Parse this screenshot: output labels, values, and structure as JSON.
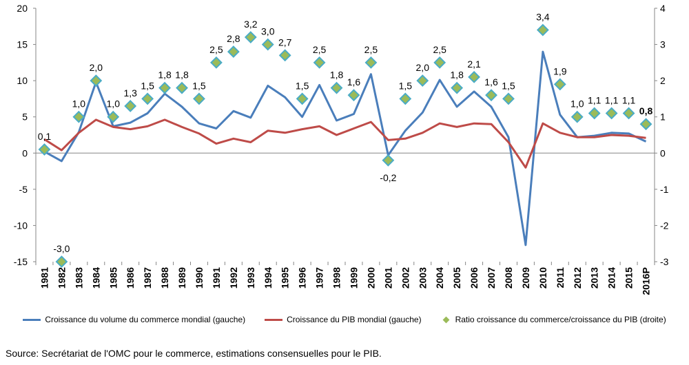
{
  "chart_data": {
    "type": "line",
    "categories": [
      "1981",
      "1982",
      "1983",
      "1984",
      "1985",
      "1986",
      "1987",
      "1988",
      "1989",
      "1990",
      "1991",
      "1992",
      "1993",
      "1994",
      "1995",
      "1996",
      "1997",
      "1998",
      "1999",
      "2000",
      "2001",
      "2002",
      "2003",
      "2004",
      "2005",
      "2006",
      "2007",
      "2008",
      "2009",
      "2010",
      "2011",
      "2012",
      "2013",
      "2014",
      "2015",
      "2016P"
    ],
    "series": [
      {
        "name": "Croissance du volume du commerce mondial (gauche)",
        "axis": "left",
        "color": "#4a7ebb",
        "values": [
          0.2,
          -1.1,
          2.9,
          9.8,
          3.7,
          4.2,
          5.5,
          8.2,
          6.4,
          4.1,
          3.4,
          5.8,
          4.9,
          9.3,
          7.7,
          5.0,
          9.4,
          4.5,
          5.4,
          10.9,
          -0.3,
          3.1,
          5.6,
          10.1,
          6.4,
          8.5,
          6.4,
          2.2,
          -12.7,
          14.0,
          5.3,
          2.2,
          2.4,
          2.8,
          2.7,
          1.6
        ]
      },
      {
        "name": "Croissance du PIB mondial (gauche)",
        "axis": "left",
        "color": "#be4b48",
        "values": [
          1.9,
          0.4,
          2.8,
          4.6,
          3.6,
          3.3,
          3.7,
          4.6,
          3.6,
          2.7,
          1.3,
          2.0,
          1.5,
          3.1,
          2.8,
          3.3,
          3.7,
          2.5,
          3.4,
          4.3,
          1.8,
          2.0,
          2.8,
          4.1,
          3.6,
          4.1,
          4.0,
          1.5,
          -2.0,
          4.1,
          2.8,
          2.2,
          2.2,
          2.5,
          2.4,
          2.1
        ]
      },
      {
        "name": "Ratio croissance du commerce/croissance du PIB (droite)",
        "axis": "right",
        "color": "#9bbb59",
        "values": [
          0.1,
          -3.0,
          1.0,
          2.0,
          1.0,
          1.3,
          1.5,
          1.8,
          1.8,
          1.5,
          2.5,
          2.8,
          3.2,
          3.0,
          2.7,
          1.5,
          2.5,
          1.8,
          1.6,
          2.5,
          -0.2,
          1.5,
          2.0,
          2.5,
          1.8,
          2.1,
          1.6,
          1.5,
          null,
          3.4,
          1.9,
          1.0,
          1.1,
          1.1,
          1.1,
          0.8
        ],
        "labels": [
          "0,1",
          "-3,0",
          "1,0",
          "2,0",
          "1,0",
          "1,3",
          "1,5",
          "1,8",
          "1,8",
          "1,5",
          "2,5",
          "2,8",
          "3,2",
          "3,0",
          "2,7",
          "1,5",
          "2,5",
          "1,8",
          "1,6",
          "2,5",
          "-0,2",
          "1,5",
          "2,0",
          "2,5",
          "1,8",
          "2,1",
          "1,6",
          "1,5",
          "",
          "3,4",
          "1,9",
          "1,0",
          "1,1",
          "1,1",
          "1,1",
          "0,8"
        ]
      }
    ],
    "y_left": {
      "ylim": [
        -15,
        20
      ],
      "ticks": [
        "-15",
        "-10",
        "-5",
        "0",
        "5",
        "10",
        "15",
        "20"
      ]
    },
    "y_right": {
      "ylim": [
        -3,
        4
      ],
      "ticks": [
        "-3",
        "-2",
        "-1",
        "0",
        "1",
        "2",
        "3",
        "4"
      ]
    },
    "grid": false,
    "legend_position": "bottom"
  },
  "source_text": "Source: Secrétariat de l'OMC pour le commerce, estimations consensuelles pour le PIB."
}
